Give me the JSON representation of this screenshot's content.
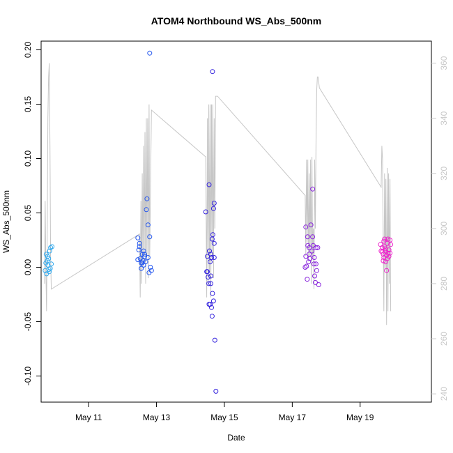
{
  "chart_data": {
    "type": "scatter",
    "title": "ATOM4 Northbound WS_Abs_500nm",
    "xlabel": "Date",
    "ylabel": "WS_Abs_500nm",
    "x_unit": "days in May (fractional)",
    "xlim": [
      9.6,
      21.1
    ],
    "ylim": [
      -0.124,
      0.208
    ],
    "y2lim": [
      237,
      368
    ],
    "x_ticks": [
      {
        "value": 11,
        "label": "May 11"
      },
      {
        "value": 13,
        "label": "May 13"
      },
      {
        "value": 15,
        "label": "May 15"
      },
      {
        "value": 17,
        "label": "May 17"
      },
      {
        "value": 19,
        "label": "May 19"
      }
    ],
    "y_ticks": [
      {
        "value": -0.1,
        "label": "-0.10"
      },
      {
        "value": -0.05,
        "label": "-0.05"
      },
      {
        "value": 0.0,
        "label": "0.00"
      },
      {
        "value": 0.05,
        "label": "0.05"
      },
      {
        "value": 0.1,
        "label": "0.10"
      },
      {
        "value": 0.15,
        "label": "0.15"
      },
      {
        "value": 0.2,
        "label": "0.20"
      }
    ],
    "y2_ticks": [
      {
        "value": 240,
        "label": "240"
      },
      {
        "value": 260,
        "label": "260"
      },
      {
        "value": 280,
        "label": "280"
      },
      {
        "value": 300,
        "label": "300"
      },
      {
        "value": 320,
        "label": "320"
      },
      {
        "value": 340,
        "label": "340"
      },
      {
        "value": 360,
        "label": "360"
      }
    ],
    "grid": false,
    "series": [
      {
        "type": "scatter",
        "color": "#33aaee",
        "points": [
          [
            9.75,
            0.012
          ],
          [
            9.78,
            0.006
          ],
          [
            9.8,
            0.002
          ],
          [
            9.72,
            -0.003
          ],
          [
            9.85,
            0.015
          ],
          [
            9.88,
            0.018
          ],
          [
            9.82,
            0.008
          ],
          [
            9.9,
            0.003
          ],
          [
            9.76,
            -0.006
          ],
          [
            9.84,
            -0.004
          ],
          [
            9.92,
            0.019
          ],
          [
            9.87,
            -0.001
          ],
          [
            9.79,
            0.01
          ],
          [
            9.83,
            -0.002
          ],
          [
            9.74,
            0.004
          ]
        ]
      },
      {
        "type": "scatter",
        "color": "#2255ee",
        "points": [
          [
            12.45,
            0.027
          ],
          [
            12.5,
            0.022
          ],
          [
            12.48,
            0.016
          ],
          [
            12.52,
            0.008
          ],
          [
            12.55,
            0.004
          ],
          [
            12.6,
            0.006
          ],
          [
            12.58,
            0.012
          ],
          [
            12.62,
            0.002
          ],
          [
            12.65,
            0.01
          ],
          [
            12.7,
            0.053
          ],
          [
            12.72,
            0.063
          ],
          [
            12.75,
            0.039
          ],
          [
            12.8,
            0.028
          ],
          [
            12.82,
            0.0
          ],
          [
            12.85,
            -0.003
          ],
          [
            12.78,
            -0.005
          ],
          [
            12.55,
            -0.001
          ],
          [
            12.5,
            0.019
          ],
          [
            12.62,
            0.015
          ],
          [
            12.68,
            0.005
          ],
          [
            12.75,
            0.009
          ],
          [
            12.45,
            0.007
          ],
          [
            12.58,
            0.004
          ],
          [
            12.8,
            0.197
          ],
          [
            12.65,
            0.012
          ]
        ]
      },
      {
        "type": "scatter",
        "color": "#3322dd",
        "points": [
          [
            14.45,
            0.051
          ],
          [
            14.55,
            0.076
          ],
          [
            14.65,
            0.18
          ],
          [
            14.7,
            0.059
          ],
          [
            14.68,
            0.054
          ],
          [
            14.5,
            -0.004
          ],
          [
            14.6,
            0.012
          ],
          [
            14.62,
            0.009
          ],
          [
            14.58,
            0.005
          ],
          [
            14.52,
            -0.009
          ],
          [
            14.48,
            -0.004
          ],
          [
            14.54,
            -0.015
          ],
          [
            14.6,
            -0.015
          ],
          [
            14.65,
            -0.024
          ],
          [
            14.55,
            -0.034
          ],
          [
            14.62,
            -0.037
          ],
          [
            14.68,
            -0.031
          ],
          [
            14.64,
            -0.045
          ],
          [
            14.72,
            -0.067
          ],
          [
            14.75,
            -0.114
          ],
          [
            14.7,
            0.022
          ],
          [
            14.66,
            0.03
          ],
          [
            14.56,
            0.015
          ],
          [
            14.5,
            0.01
          ],
          [
            14.6,
            -0.008
          ],
          [
            14.7,
            0.009
          ],
          [
            14.64,
            0.026
          ],
          [
            14.58,
            -0.034
          ]
        ]
      },
      {
        "type": "scatter",
        "color": "#8822dd",
        "points": [
          [
            17.4,
            0.037
          ],
          [
            17.45,
            0.028
          ],
          [
            17.5,
            0.018
          ],
          [
            17.55,
            0.039
          ],
          [
            17.6,
            0.072
          ],
          [
            17.62,
            0.02
          ],
          [
            17.65,
            0.009
          ],
          [
            17.7,
            0.003
          ],
          [
            17.72,
            -0.003
          ],
          [
            17.75,
            0.018
          ],
          [
            17.68,
            -0.014
          ],
          [
            17.78,
            -0.016
          ],
          [
            17.4,
            0.01
          ],
          [
            17.42,
            0.001
          ],
          [
            17.44,
            -0.011
          ],
          [
            17.48,
            0.005
          ],
          [
            17.5,
            0.012
          ],
          [
            17.52,
            0.008
          ],
          [
            17.58,
            0.015
          ],
          [
            17.6,
            0.028
          ],
          [
            17.64,
            0.003
          ],
          [
            17.66,
            -0.008
          ],
          [
            17.7,
            0.018
          ],
          [
            17.38,
            0.0
          ],
          [
            17.46,
            0.02
          ]
        ]
      },
      {
        "type": "scatter",
        "color": "#ee22cc",
        "points": [
          [
            19.6,
            0.021
          ],
          [
            19.65,
            0.018
          ],
          [
            19.68,
            0.012
          ],
          [
            19.7,
            0.024
          ],
          [
            19.72,
            0.026
          ],
          [
            19.75,
            0.015
          ],
          [
            19.78,
            0.011
          ],
          [
            19.8,
            0.008
          ],
          [
            19.82,
            0.026
          ],
          [
            19.85,
            0.016
          ],
          [
            19.88,
            0.013
          ],
          [
            19.9,
            0.021
          ],
          [
            19.7,
            0.009
          ],
          [
            19.75,
            0.005
          ],
          [
            19.78,
            -0.003
          ],
          [
            19.65,
            0.014
          ],
          [
            19.72,
            0.019
          ],
          [
            19.8,
            0.022
          ],
          [
            19.85,
            0.01
          ],
          [
            19.62,
            0.015
          ],
          [
            19.68,
            0.006
          ],
          [
            19.74,
            0.017
          ],
          [
            19.82,
            0.013
          ],
          [
            19.88,
            0.025
          ]
        ]
      },
      {
        "type": "line",
        "axis": "right",
        "color": "#c6c6c6",
        "points": [
          [
            9.7,
            280
          ],
          [
            9.72,
            310
          ],
          [
            9.74,
            285
          ],
          [
            9.76,
            270
          ],
          [
            9.78,
            300
          ],
          [
            9.8,
            340
          ],
          [
            9.82,
            355
          ],
          [
            9.84,
            360
          ],
          [
            9.86,
            330
          ],
          [
            9.88,
            290
          ],
          [
            9.9,
            278
          ],
          [
            12.5,
            298
          ],
          [
            12.52,
            275
          ],
          [
            12.54,
            310
          ],
          [
            12.56,
            280
          ],
          [
            12.58,
            320
          ],
          [
            12.6,
            285
          ],
          [
            12.62,
            330
          ],
          [
            12.64,
            290
          ],
          [
            12.66,
            335
          ],
          [
            12.68,
            280
          ],
          [
            12.7,
            340
          ],
          [
            12.72,
            290
          ],
          [
            12.74,
            340
          ],
          [
            12.76,
            282
          ],
          [
            12.78,
            345
          ],
          [
            12.8,
            290
          ],
          [
            12.85,
            343
          ],
          [
            14.45,
            326
          ],
          [
            14.48,
            275
          ],
          [
            14.5,
            340
          ],
          [
            14.52,
            280
          ],
          [
            14.54,
            345
          ],
          [
            14.56,
            285
          ],
          [
            14.58,
            345
          ],
          [
            14.6,
            275
          ],
          [
            14.62,
            345
          ],
          [
            14.64,
            290
          ],
          [
            14.66,
            345
          ],
          [
            14.68,
            282
          ],
          [
            14.7,
            340
          ],
          [
            14.72,
            300
          ],
          [
            14.74,
            348
          ],
          [
            14.8,
            348
          ],
          [
            17.38,
            312
          ],
          [
            17.4,
            290
          ],
          [
            17.42,
            325
          ],
          [
            17.44,
            295
          ],
          [
            17.46,
            325
          ],
          [
            17.48,
            288
          ],
          [
            17.5,
            320
          ],
          [
            17.52,
            290
          ],
          [
            17.54,
            325
          ],
          [
            17.56,
            280
          ],
          [
            17.58,
            326
          ],
          [
            17.6,
            290
          ],
          [
            17.62,
            300
          ],
          [
            17.64,
            278
          ],
          [
            17.66,
            325
          ],
          [
            17.68,
            300
          ],
          [
            17.7,
            330
          ],
          [
            17.72,
            350
          ],
          [
            17.74,
            355
          ],
          [
            17.76,
            355
          ],
          [
            17.8,
            351
          ],
          [
            19.62,
            315
          ],
          [
            19.64,
            330
          ],
          [
            19.66,
            325
          ],
          [
            19.68,
            295
          ],
          [
            19.7,
            270
          ],
          [
            19.72,
            320
          ],
          [
            19.74,
            285
          ],
          [
            19.76,
            318
          ],
          [
            19.78,
            265
          ],
          [
            19.8,
            322
          ],
          [
            19.82,
            270
          ],
          [
            19.84,
            320
          ],
          [
            19.86,
            280
          ],
          [
            19.88,
            318
          ],
          [
            19.9,
            270
          ]
        ]
      }
    ]
  }
}
